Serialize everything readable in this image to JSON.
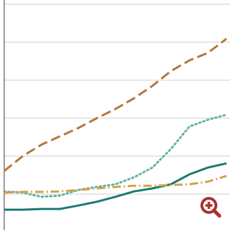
{
  "chart_data": {
    "type": "line",
    "x": [
      0,
      2,
      4,
      6,
      8,
      10,
      12,
      14,
      16,
      18,
      20,
      22,
      24
    ],
    "xlim": [
      0,
      24
    ],
    "ylim": [
      0,
      6
    ],
    "yticks": [
      1,
      2,
      3,
      4,
      5,
      6
    ],
    "grid": true,
    "series": [
      {
        "color": "#b5773a",
        "style": "dashed",
        "values": [
          1.61,
          2.0,
          2.3,
          2.52,
          2.74,
          3.0,
          3.24,
          3.52,
          3.85,
          4.24,
          4.52,
          4.72,
          5.09
        ]
      },
      {
        "color": "#5fb3a3",
        "style": "dotted",
        "values": [
          1.07,
          1.04,
          0.93,
          0.96,
          1.11,
          1.19,
          1.26,
          1.44,
          1.7,
          2.19,
          2.78,
          2.96,
          3.09
        ]
      },
      {
        "color": "#1a7a6e",
        "style": "solid",
        "values": [
          0.59,
          0.59,
          0.61,
          0.61,
          0.7,
          0.8,
          0.93,
          1.07,
          1.15,
          1.26,
          1.52,
          1.7,
          1.81
        ]
      },
      {
        "color": "#d4a04a",
        "style": "dashdot",
        "values": [
          1.04,
          1.06,
          1.06,
          1.07,
          1.11,
          1.15,
          1.19,
          1.22,
          1.22,
          1.24,
          1.26,
          1.33,
          1.48
        ]
      }
    ]
  }
}
